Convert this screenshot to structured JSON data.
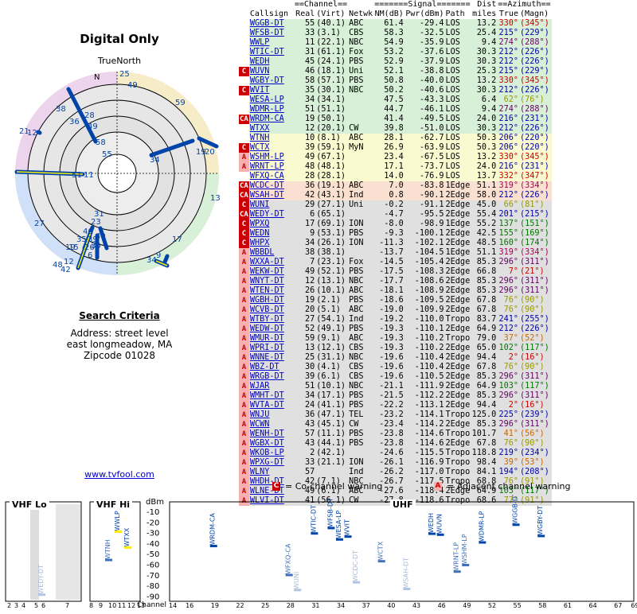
{
  "left": {
    "title": "Digital Only",
    "true_north": "TrueNorth",
    "north_mark": "N",
    "search_title": "Search Criteria",
    "address_lines": [
      "Address: street level",
      "east longmeadow, MA",
      "Zipcode 01028"
    ],
    "site_link": "www.tvfool.com",
    "polar_labels": [
      "25",
      "49",
      "59",
      "38",
      "28",
      "36",
      "49",
      "21",
      "12",
      "58",
      "55",
      "34",
      "19",
      "20",
      "51",
      "11",
      "13",
      "31",
      "23",
      "27",
      "46",
      "35",
      "39",
      "40",
      "30",
      "15",
      "26",
      "6",
      "17",
      "48",
      "12",
      "42",
      "34",
      "9",
      "19"
    ]
  },
  "table": {
    "header1": {
      "channel": "==Channel==",
      "signal": "=======Signal=======",
      "dist": "Dist",
      "azimuth": "==Azimuth=="
    },
    "header2": {
      "callsign": "Callsign",
      "real": "Real",
      "virt": "(Virt)",
      "netwk": "Netwk",
      "nm": "NM(dB)",
      "pwr": "Pwr(dBm)",
      "path": "Path",
      "miles": "miles",
      "true": "True",
      "magn": "(Magn)"
    },
    "rows": [
      {
        "w": "",
        "call": "WGGB-DT",
        "real": "55",
        "virt": "(40.1)",
        "net": "ABC",
        "nm": "61.4",
        "pwr": "-29.4",
        "path": "LOS",
        "mi": "13.2",
        "tr": "330°",
        "mg": "(345°)",
        "bg": "#d8f0d8",
        "az": "#cc0000"
      },
      {
        "w": "",
        "call": "WFSB-DT",
        "real": "33",
        "virt": "(3.1)",
        "net": "CBS",
        "nm": "58.3",
        "pwr": "-32.5",
        "path": "LOS",
        "mi": "25.4",
        "tr": "215°",
        "mg": "(229°)",
        "bg": "#d8f0d8",
        "az": "#0000aa"
      },
      {
        "w": "",
        "call": "WWLP",
        "real": "11",
        "virt": "(22.1)",
        "net": "NBC",
        "nm": "54.9",
        "pwr": "-35.9",
        "path": "LOS",
        "mi": "9.4",
        "tr": "274°",
        "mg": "(288°)",
        "bg": "#d8f0d8",
        "az": "#660066"
      },
      {
        "w": "",
        "call": "WTIC-DT",
        "real": "31",
        "virt": "(61.1)",
        "net": "Fox",
        "nm": "53.2",
        "pwr": "-37.6",
        "path": "LOS",
        "mi": "30.3",
        "tr": "212°",
        "mg": "(226°)",
        "bg": "#d8f0d8",
        "az": "#0000aa"
      },
      {
        "w": "",
        "call": "WEDH",
        "real": "45",
        "virt": "(24.1)",
        "net": "PBS",
        "nm": "52.9",
        "pwr": "-37.9",
        "path": "LOS",
        "mi": "30.3",
        "tr": "212°",
        "mg": "(226°)",
        "bg": "#d8f0d8",
        "az": "#0000aa"
      },
      {
        "w": "C",
        "call": "WUVN",
        "real": "46",
        "virt": "(18.1)",
        "net": "Uni",
        "nm": "52.1",
        "pwr": "-38.8",
        "path": "LOS",
        "mi": "25.3",
        "tr": "215°",
        "mg": "(229°)",
        "bg": "#d8f0d8",
        "az": "#0000aa"
      },
      {
        "w": "",
        "call": "WGBY-DT",
        "real": "58",
        "virt": "(57.1)",
        "net": "PBS",
        "nm": "50.8",
        "pwr": "-40.0",
        "path": "LOS",
        "mi": "13.2",
        "tr": "330°",
        "mg": "(345°)",
        "bg": "#d8f0d8",
        "az": "#cc0000"
      },
      {
        "w": "C",
        "call": "WVIT",
        "real": "35",
        "virt": "(30.1)",
        "net": "NBC",
        "nm": "50.2",
        "pwr": "-40.6",
        "path": "LOS",
        "mi": "30.3",
        "tr": "212°",
        "mg": "(226°)",
        "bg": "#d8f0d8",
        "az": "#0000aa"
      },
      {
        "w": "",
        "call": "WESA-LP",
        "real": "34",
        "virt": "(34.1)",
        "net": "",
        "nm": "47.5",
        "pwr": "-43.3",
        "path": "LOS",
        "mi": "6.4",
        "tr": "62°",
        "mg": "(76°)",
        "bg": "#d8f0d8",
        "az": "#999900"
      },
      {
        "w": "",
        "call": "WDMR-LP",
        "real": "51",
        "virt": "(51.1)",
        "net": "",
        "nm": "44.7",
        "pwr": "-46.1",
        "path": "LOS",
        "mi": "9.4",
        "tr": "274°",
        "mg": "(288°)",
        "bg": "#d8f0d8",
        "az": "#660066"
      },
      {
        "w": "CA",
        "call": "WRDM-CA",
        "real": "19",
        "virt": "(50.1)",
        "net": "",
        "nm": "41.4",
        "pwr": "-49.5",
        "path": "LOS",
        "mi": "24.0",
        "tr": "216°",
        "mg": "(231°)",
        "bg": "#d8f0d8",
        "az": "#0000aa"
      },
      {
        "w": "",
        "call": "WTXX",
        "real": "12",
        "virt": "(20.1)",
        "net": "CW",
        "nm": "39.8",
        "pwr": "-51.0",
        "path": "LOS",
        "mi": "30.3",
        "tr": "212°",
        "mg": "(226°)",
        "bg": "#d8f0d8",
        "az": "#0000aa"
      },
      {
        "w": "",
        "call": "WTNH",
        "real": "10",
        "virt": "(8.1)",
        "net": "ABC",
        "nm": "28.1",
        "pwr": "-62.7",
        "path": "LOS",
        "mi": "50.3",
        "tr": "206°",
        "mg": "(220°)",
        "bg": "#fafad0",
        "az": "#0000aa"
      },
      {
        "w": "C",
        "call": "WCTX",
        "real": "39",
        "virt": "(59.1)",
        "net": "MyN",
        "nm": "26.9",
        "pwr": "-63.9",
        "path": "LOS",
        "mi": "50.3",
        "tr": "206°",
        "mg": "(220°)",
        "bg": "#fafad0",
        "az": "#0000aa"
      },
      {
        "w": "A",
        "call": "WSHM-LP",
        "real": "49",
        "virt": "(67.1)",
        "net": "",
        "nm": "23.4",
        "pwr": "-67.5",
        "path": "LOS",
        "mi": "13.2",
        "tr": "330°",
        "mg": "(345°)",
        "bg": "#fafad0",
        "az": "#cc0000"
      },
      {
        "w": "A",
        "call": "WRNT-LP",
        "real": "48",
        "virt": "(48.1)",
        "net": "",
        "nm": "17.1",
        "pwr": "-73.7",
        "path": "LOS",
        "mi": "24.0",
        "tr": "216°",
        "mg": "(231°)",
        "bg": "#fafad0",
        "az": "#0000aa"
      },
      {
        "w": "",
        "call": "WFXQ-CA",
        "real": "28",
        "virt": "(28.1)",
        "net": "",
        "nm": "14.0",
        "pwr": "-76.9",
        "path": "LOS",
        "mi": "13.7",
        "tr": "332°",
        "mg": "(347°)",
        "bg": "#fafad0",
        "az": "#cc0000"
      },
      {
        "w": "CA",
        "call": "WCDC-DT",
        "real": "36",
        "virt": "(19.1)",
        "net": "ABC",
        "nm": "7.0",
        "pwr": "-83.8",
        "path": "1Edge",
        "mi": "51.1",
        "tr": "319°",
        "mg": "(334°)",
        "bg": "#fae0d0",
        "az": "#aa0055"
      },
      {
        "w": "CA",
        "call": "WSAH-DT",
        "real": "42",
        "virt": "(43.1)",
        "net": "Ind",
        "nm": "0.8",
        "pwr": "-90.1",
        "path": "2Edge",
        "mi": "58.0",
        "tr": "212°",
        "mg": "(226°)",
        "bg": "#fae0d0",
        "az": "#0000aa"
      },
      {
        "w": "C",
        "call": "WUNI",
        "real": "29",
        "virt": "(27.1)",
        "net": "Uni",
        "nm": "-0.2",
        "pwr": "-91.1",
        "path": "2Edge",
        "mi": "45.0",
        "tr": "66°",
        "mg": "(81°)",
        "bg": "#e0e0e0",
        "az": "#999900"
      },
      {
        "w": "CA",
        "call": "WEDY-DT",
        "real": "6",
        "virt": "(65.1)",
        "net": "",
        "nm": "-4.7",
        "pwr": "-95.5",
        "path": "2Edge",
        "mi": "55.4",
        "tr": "201°",
        "mg": "(215°)",
        "bg": "#e0e0e0",
        "az": "#0000aa"
      },
      {
        "w": "C",
        "call": "WPXQ",
        "real": "17",
        "virt": "(69.1)",
        "net": "ION",
        "nm": "-8.0",
        "pwr": "-98.9",
        "path": "1Edge",
        "mi": "55.2",
        "tr": "137°",
        "mg": "(151°)",
        "bg": "#e0e0e0",
        "az": "#007700"
      },
      {
        "w": "C",
        "call": "WEDN",
        "real": "9",
        "virt": "(53.1)",
        "net": "PBS",
        "nm": "-9.3",
        "pwr": "-100.1",
        "path": "2Edge",
        "mi": "42.5",
        "tr": "155°",
        "mg": "(169°)",
        "bg": "#e0e0e0",
        "az": "#007700"
      },
      {
        "w": "C",
        "call": "WHPX",
        "real": "34",
        "virt": "(26.1)",
        "net": "ION",
        "nm": "-11.3",
        "pwr": "-102.1",
        "path": "2Edge",
        "mi": "48.5",
        "tr": "160°",
        "mg": "(174°)",
        "bg": "#e0e0e0",
        "az": "#007700"
      },
      {
        "w": "A",
        "call": "WBBDL",
        "real": "38",
        "virt": "(38.1)",
        "net": "",
        "nm": "-13.7",
        "pwr": "-104.5",
        "path": "1Edge",
        "mi": "51.1",
        "tr": "319°",
        "mg": "(334°)",
        "bg": "#e0e0e0",
        "az": "#aa0055"
      },
      {
        "w": "A",
        "call": "WXXA-DT",
        "real": "7",
        "virt": "(23.1)",
        "net": "Fox",
        "nm": "-14.5",
        "pwr": "-105.4",
        "path": "2Edge",
        "mi": "85.3",
        "tr": "296°",
        "mg": "(311°)",
        "bg": "#e0e0e0",
        "az": "#660066"
      },
      {
        "w": "A",
        "call": "WEKW-DT",
        "real": "49",
        "virt": "(52.1)",
        "net": "PBS",
        "nm": "-17.5",
        "pwr": "-108.3",
        "path": "2Edge",
        "mi": "66.8",
        "tr": "7°",
        "mg": "(21°)",
        "bg": "#e0e0e0",
        "az": "#cc0000"
      },
      {
        "w": "A",
        "call": "WNYT-DT",
        "real": "12",
        "virt": "(13.1)",
        "net": "NBC",
        "nm": "-17.7",
        "pwr": "-108.6",
        "path": "2Edge",
        "mi": "85.3",
        "tr": "296°",
        "mg": "(311°)",
        "bg": "#e0e0e0",
        "az": "#660066"
      },
      {
        "w": "A",
        "call": "WTEN-DT",
        "real": "26",
        "virt": "(10.1)",
        "net": "ABC",
        "nm": "-18.1",
        "pwr": "-108.9",
        "path": "2Edge",
        "mi": "85.3",
        "tr": "296°",
        "mg": "(311°)",
        "bg": "#e0e0e0",
        "az": "#660066"
      },
      {
        "w": "A",
        "call": "WGBH-DT",
        "real": "19",
        "virt": "(2.1)",
        "net": "PBS",
        "nm": "-18.6",
        "pwr": "-109.5",
        "path": "2Edge",
        "mi": "67.8",
        "tr": "76°",
        "mg": "(90°)",
        "bg": "#e0e0e0",
        "az": "#999900"
      },
      {
        "w": "A",
        "call": "WCVB-DT",
        "real": "20",
        "virt": "(5.1)",
        "net": "ABC",
        "nm": "-19.0",
        "pwr": "-109.9",
        "path": "2Edge",
        "mi": "67.8",
        "tr": "76°",
        "mg": "(90°)",
        "bg": "#e0e0e0",
        "az": "#999900"
      },
      {
        "w": "A",
        "call": "WTBY-DT",
        "real": "27",
        "virt": "(54.1)",
        "net": "Ind",
        "nm": "-19.2",
        "pwr": "-110.0",
        "path": "Tropo",
        "mi": "83.7",
        "tr": "241°",
        "mg": "(255°)",
        "bg": "#e0e0e0",
        "az": "#0000aa"
      },
      {
        "w": "A",
        "call": "WEDW-DT",
        "real": "52",
        "virt": "(49.1)",
        "net": "PBS",
        "nm": "-19.3",
        "pwr": "-110.1",
        "path": "2Edge",
        "mi": "64.9",
        "tr": "212°",
        "mg": "(226°)",
        "bg": "#e0e0e0",
        "az": "#0000aa"
      },
      {
        "w": "A",
        "call": "WMUR-DT",
        "real": "59",
        "virt": "(9.1)",
        "net": "ABC",
        "nm": "-19.3",
        "pwr": "-110.2",
        "path": "Tropo",
        "mi": "79.0",
        "tr": "37°",
        "mg": "(52°)",
        "bg": "#e0e0e0",
        "az": "#cc6600"
      },
      {
        "w": "A",
        "call": "WPRI-DT",
        "real": "13",
        "virt": "(12.1)",
        "net": "CBS",
        "nm": "-19.3",
        "pwr": "-110.2",
        "path": "2Edge",
        "mi": "65.0",
        "tr": "102°",
        "mg": "(117°)",
        "bg": "#e0e0e0",
        "az": "#007700"
      },
      {
        "w": "A",
        "call": "WNNE-DT",
        "real": "25",
        "virt": "(31.1)",
        "net": "NBC",
        "nm": "-19.6",
        "pwr": "-110.4",
        "path": "2Edge",
        "mi": "94.4",
        "tr": "2°",
        "mg": "(16°)",
        "bg": "#e0e0e0",
        "az": "#cc0000"
      },
      {
        "w": "A",
        "call": "WBZ-DT",
        "real": "30",
        "virt": "(4.1)",
        "net": "CBS",
        "nm": "-19.6",
        "pwr": "-110.4",
        "path": "2Edge",
        "mi": "67.8",
        "tr": "76°",
        "mg": "(90°)",
        "bg": "#e0e0e0",
        "az": "#999900"
      },
      {
        "w": "A",
        "call": "WRGB-DT",
        "real": "39",
        "virt": "(6.1)",
        "net": "CBS",
        "nm": "-19.6",
        "pwr": "-110.5",
        "path": "2Edge",
        "mi": "85.3",
        "tr": "296°",
        "mg": "(311°)",
        "bg": "#e0e0e0",
        "az": "#660066"
      },
      {
        "w": "A",
        "call": "WJAR",
        "real": "51",
        "virt": "(10.1)",
        "net": "NBC",
        "nm": "-21.1",
        "pwr": "-111.9",
        "path": "2Edge",
        "mi": "64.9",
        "tr": "103°",
        "mg": "(117°)",
        "bg": "#e0e0e0",
        "az": "#007700"
      },
      {
        "w": "A",
        "call": "WMHT-DT",
        "real": "34",
        "virt": "(17.1)",
        "net": "PBS",
        "nm": "-21.5",
        "pwr": "-112.2",
        "path": "2Edge",
        "mi": "85.3",
        "tr": "296°",
        "mg": "(311°)",
        "bg": "#e0e0e0",
        "az": "#660066"
      },
      {
        "w": "A",
        "call": "WVTA-DT",
        "real": "24",
        "virt": "(41.1)",
        "net": "PBS",
        "nm": "-22.2",
        "pwr": "-113.1",
        "path": "2Edge",
        "mi": "94.4",
        "tr": "2°",
        "mg": "(16°)",
        "bg": "#e0e0e0",
        "az": "#cc0000"
      },
      {
        "w": "A",
        "call": "WNJU",
        "real": "36",
        "virt": "(47.1)",
        "net": "TEL",
        "nm": "-23.2",
        "pwr": "-114.1",
        "path": "Tropo",
        "mi": "125.0",
        "tr": "225°",
        "mg": "(239°)",
        "bg": "#e0e0e0",
        "az": "#0000aa"
      },
      {
        "w": "A",
        "call": "WCWN",
        "real": "43",
        "virt": "(45.1)",
        "net": "CW",
        "nm": "-23.4",
        "pwr": "-114.2",
        "path": "2Edge",
        "mi": "85.3",
        "tr": "296°",
        "mg": "(311°)",
        "bg": "#e0e0e0",
        "az": "#660066"
      },
      {
        "w": "A",
        "call": "WENH-DT",
        "real": "57",
        "virt": "(11.1)",
        "net": "PBS",
        "nm": "-23.8",
        "pwr": "-114.6",
        "path": "Tropo",
        "mi": "101.7",
        "tr": "41°",
        "mg": "(56°)",
        "bg": "#e0e0e0",
        "az": "#cc6600"
      },
      {
        "w": "A",
        "call": "WGBX-DT",
        "real": "43",
        "virt": "(44.1)",
        "net": "PBS",
        "nm": "-23.8",
        "pwr": "-114.6",
        "path": "2Edge",
        "mi": "67.8",
        "tr": "76°",
        "mg": "(90°)",
        "bg": "#e0e0e0",
        "az": "#999900"
      },
      {
        "w": "A",
        "call": "WKOB-LP",
        "real": "2",
        "virt": "(42.1)",
        "net": "",
        "nm": "-24.6",
        "pwr": "-115.5",
        "path": "Tropo",
        "mi": "118.8",
        "tr": "219°",
        "mg": "(234°)",
        "bg": "#e0e0e0",
        "az": "#0000aa"
      },
      {
        "w": "A",
        "call": "WPXG-DT",
        "real": "33",
        "virt": "(21.1)",
        "net": "ION",
        "nm": "-26.1",
        "pwr": "-116.9",
        "path": "Tropo",
        "mi": "98.4",
        "tr": "39°",
        "mg": "(53°)",
        "bg": "#e0e0e0",
        "az": "#cc6600"
      },
      {
        "w": "A",
        "call": "WLNY",
        "real": "57",
        "virt": "",
        "net": "Ind",
        "nm": "-26.2",
        "pwr": "-117.0",
        "path": "Tropo",
        "mi": "84.1",
        "tr": "194°",
        "mg": "(208°)",
        "bg": "#e0e0e0",
        "az": "#0000aa"
      },
      {
        "w": "A",
        "call": "WHDH-DT",
        "real": "42",
        "virt": "(7.1)",
        "net": "NBC",
        "nm": "-26.7",
        "pwr": "-117.5",
        "path": "Tropo",
        "mi": "68.8",
        "tr": "76°",
        "mg": "(91°)",
        "bg": "#e0e0e0",
        "az": "#999900"
      },
      {
        "w": "A",
        "call": "WLNE-DT",
        "real": "49",
        "virt": "(6.1)",
        "net": "ABC",
        "nm": "-27.6",
        "pwr": "-118.4",
        "path": "2Edge",
        "mi": "64.9",
        "tr": "103°",
        "mg": "(117°)",
        "bg": "#e0e0e0",
        "az": "#007700"
      },
      {
        "w": "A",
        "call": "WLVI-DT",
        "real": "41",
        "virt": "(56.1)",
        "net": "CW",
        "nm": "-27.8",
        "pwr": "-118.6",
        "path": "Tropo",
        "mi": "68.6",
        "tr": "77°",
        "mg": "(91°)",
        "bg": "#e0e0e0",
        "az": "#999900"
      }
    ]
  },
  "legend": {
    "co": "= Co-channel warning",
    "adj": "= Adjacent channel warning"
  },
  "bottom": {
    "vhf_lo": "VHF Lo",
    "vhf_hi": "VHF Hi",
    "uhf": "UHF",
    "dbm": "dBm",
    "channel": "Channel",
    "y_ticks": [
      "-10",
      "-20",
      "-30",
      "-40",
      "-50",
      "-60",
      "-70",
      "-80",
      "-90"
    ],
    "uhf_ticks": [
      "14",
      "16",
      "19",
      "22",
      "25",
      "28",
      "31",
      "34",
      "37",
      "40",
      "43",
      "46",
      "49",
      "52",
      "55",
      "58",
      "61",
      "64",
      "67",
      "69"
    ],
    "vhf_ticks": [
      "2",
      "3",
      "4",
      "5",
      "6",
      "7",
      "8",
      "9",
      "10",
      "11",
      "12",
      "13"
    ]
  }
}
